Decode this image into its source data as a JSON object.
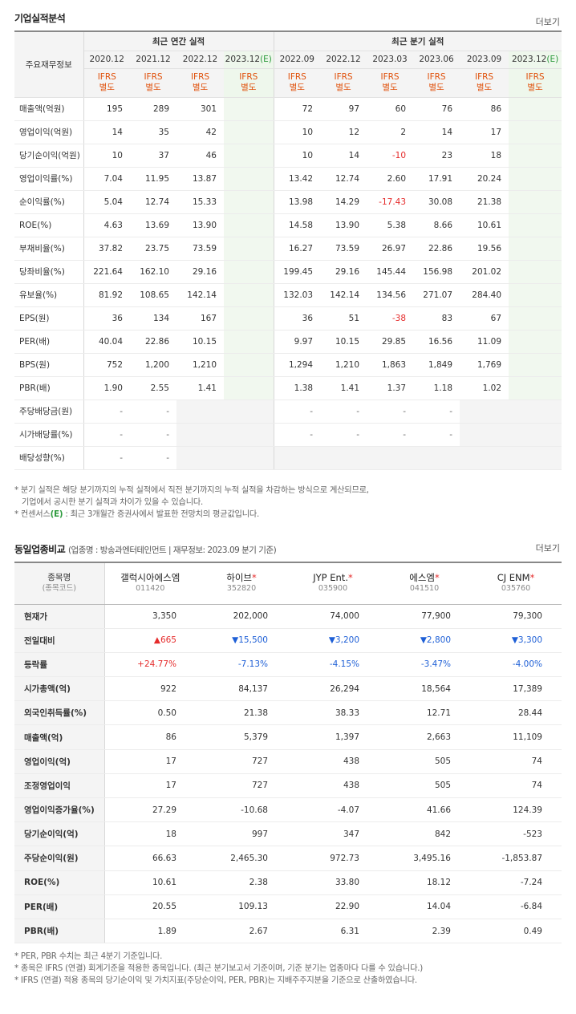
{
  "section1": {
    "title": "기업실적분석",
    "more_label": "더보기",
    "label_header": "주요재무정보",
    "group_annual": "최근 연간 실적",
    "group_quarter": "최근 분기 실적",
    "periods": [
      "2020.12",
      "2021.12",
      "2022.12",
      "2023.12",
      "2022.09",
      "2022.12",
      "2023.03",
      "2023.06",
      "2023.09",
      "2023.12"
    ],
    "est_mark": "(E)",
    "ifrs_line1": "IFRS",
    "ifrs_line2": "별도",
    "rows": [
      {
        "label": "매출액(억원)",
        "vals": [
          "195",
          "289",
          "301",
          "",
          "72",
          "97",
          "60",
          "76",
          "86",
          ""
        ]
      },
      {
        "label": "영업이익(억원)",
        "vals": [
          "14",
          "35",
          "42",
          "",
          "10",
          "12",
          "2",
          "14",
          "17",
          ""
        ]
      },
      {
        "label": "당기순이익(억원)",
        "vals": [
          "10",
          "37",
          "46",
          "",
          "10",
          "14",
          "-10",
          "23",
          "18",
          ""
        ]
      },
      {
        "label": "영업이익률(%)",
        "vals": [
          "7.04",
          "11.95",
          "13.87",
          "",
          "13.42",
          "12.74",
          "2.60",
          "17.91",
          "20.24",
          ""
        ]
      },
      {
        "label": "순이익률(%)",
        "vals": [
          "5.04",
          "12.74",
          "15.33",
          "",
          "13.98",
          "14.29",
          "-17.43",
          "30.08",
          "21.38",
          ""
        ]
      },
      {
        "label": "ROE(%)",
        "vals": [
          "4.63",
          "13.69",
          "13.90",
          "",
          "14.58",
          "13.90",
          "5.38",
          "8.66",
          "10.61",
          ""
        ]
      },
      {
        "label": "부채비율(%)",
        "vals": [
          "37.82",
          "23.75",
          "73.59",
          "",
          "16.27",
          "73.59",
          "26.97",
          "22.86",
          "19.56",
          ""
        ]
      },
      {
        "label": "당좌비율(%)",
        "vals": [
          "221.64",
          "162.10",
          "29.16",
          "",
          "199.45",
          "29.16",
          "145.44",
          "156.98",
          "201.02",
          ""
        ]
      },
      {
        "label": "유보율(%)",
        "vals": [
          "81.92",
          "108.65",
          "142.14",
          "",
          "132.03",
          "142.14",
          "134.56",
          "271.07",
          "284.40",
          ""
        ]
      },
      {
        "label": "EPS(원)",
        "vals": [
          "36",
          "134",
          "167",
          "",
          "36",
          "51",
          "-38",
          "83",
          "67",
          ""
        ]
      },
      {
        "label": "PER(배)",
        "vals": [
          "40.04",
          "22.86",
          "10.15",
          "",
          "9.97",
          "10.15",
          "29.85",
          "16.56",
          "11.09",
          ""
        ]
      },
      {
        "label": "BPS(원)",
        "vals": [
          "752",
          "1,200",
          "1,210",
          "",
          "1,294",
          "1,210",
          "1,863",
          "1,849",
          "1,769",
          ""
        ]
      },
      {
        "label": "PBR(배)",
        "vals": [
          "1.90",
          "2.55",
          "1.41",
          "",
          "1.38",
          "1.41",
          "1.37",
          "1.18",
          "1.02",
          ""
        ]
      },
      {
        "label": "주당배당금(원)",
        "vals": [
          "-",
          "-",
          "",
          "",
          "-",
          "-",
          "-",
          "-",
          "",
          ""
        ]
      },
      {
        "label": "시가배당률(%)",
        "vals": [
          "-",
          "-",
          "",
          "",
          "-",
          "-",
          "-",
          "-",
          "",
          ""
        ]
      },
      {
        "label": "배당성향(%)",
        "vals": [
          "-",
          "-",
          "",
          "",
          "",
          "",
          "",
          "",
          "",
          ""
        ]
      }
    ],
    "notes": [
      "* 분기 실적은 해당 분기까지의 누적 실적에서 직전 분기까지의 누적 실적을 차감하는 방식으로 계산되므로,",
      "기업에서 공시한 분기 실적과 차이가 있을 수 있습니다.",
      "* 컨센서스",
      ": 최근 3개월간 증권사에서 발표한 전망치의 평균값입니다."
    ],
    "note_est_mark": "(E)"
  },
  "section2": {
    "title": "동일업종비교",
    "subtitle": "(업종명 : 방송과엔터테인먼트 | 재무정보: 2023.09 분기 기준)",
    "more_label": "더보기",
    "label_header_1": "종목명",
    "label_header_2": "(종목코드)",
    "companies": [
      {
        "name": "갤럭시아에스엠",
        "code": "011420",
        "star": ""
      },
      {
        "name": "하이브",
        "code": "352820",
        "star": "*"
      },
      {
        "name": "JYP Ent.",
        "code": "035900",
        "star": "*"
      },
      {
        "name": "에스엠",
        "code": "041510",
        "star": "*"
      },
      {
        "name": "CJ ENM",
        "code": "035760",
        "star": "*"
      }
    ],
    "rows": [
      {
        "label": "현재가",
        "vals": [
          "3,350",
          "202,000",
          "74,000",
          "77,900",
          "79,300"
        ]
      },
      {
        "label": "전일대비",
        "vals": [
          "▲665",
          "▼15,500",
          "▼3,200",
          "▼2,800",
          "▼3,300"
        ]
      },
      {
        "label": "등락률",
        "vals": [
          "+24.77%",
          "-7.13%",
          "-4.15%",
          "-3.47%",
          "-4.00%"
        ]
      },
      {
        "label": "시가총액(억)",
        "vals": [
          "922",
          "84,137",
          "26,294",
          "18,564",
          "17,389"
        ]
      },
      {
        "label": "외국인취득률(%)",
        "vals": [
          "0.50",
          "21.38",
          "38.33",
          "12.71",
          "28.44"
        ]
      },
      {
        "label": "매출액(억)",
        "vals": [
          "86",
          "5,379",
          "1,397",
          "2,663",
          "11,109"
        ]
      },
      {
        "label": "영업이익(억)",
        "vals": [
          "17",
          "727",
          "438",
          "505",
          "74"
        ]
      },
      {
        "label": "조정영업이익",
        "vals": [
          "17",
          "727",
          "438",
          "505",
          "74"
        ]
      },
      {
        "label": "영업이익증가율(%)",
        "vals": [
          "27.29",
          "-10.68",
          "-4.07",
          "41.66",
          "124.39"
        ]
      },
      {
        "label": "당기순이익(억)",
        "vals": [
          "18",
          "997",
          "347",
          "842",
          "-523"
        ]
      },
      {
        "label": "주당순이익(원)",
        "vals": [
          "66.63",
          "2,465.30",
          "972.73",
          "3,495.16",
          "-1,853.87"
        ]
      },
      {
        "label": "ROE(%)",
        "vals": [
          "10.61",
          "2.38",
          "33.80",
          "18.12",
          "-7.24"
        ]
      },
      {
        "label": "PER(배)",
        "vals": [
          "20.55",
          "109.13",
          "22.90",
          "14.04",
          "-6.84"
        ]
      },
      {
        "label": "PBR(배)",
        "vals": [
          "1.89",
          "2.67",
          "6.31",
          "2.39",
          "0.49"
        ]
      }
    ],
    "notes": [
      "* PER, PBR 수치는 최근 4분기 기준입니다.",
      "* 종목은 IFRS (연결) 회계기준을 적용한 종목입니다. (최근 분기보고서 기준이며, 기준 분기는 업종마다 다를 수 있습니다.)",
      "* IFRS (연결) 적용 종목의 당기순이익 및 가치지표(주당순이익, PER, PBR)는 지배주주지분을 기준으로 산출하였습니다."
    ],
    "note_star": "*"
  },
  "colors": {
    "negative": "#e52b2b",
    "down": "#1e5fd6",
    "ifrs": "#e0500a",
    "estimate_bg": "#f1f8ef",
    "estimate_mark": "#2e9b3e"
  }
}
